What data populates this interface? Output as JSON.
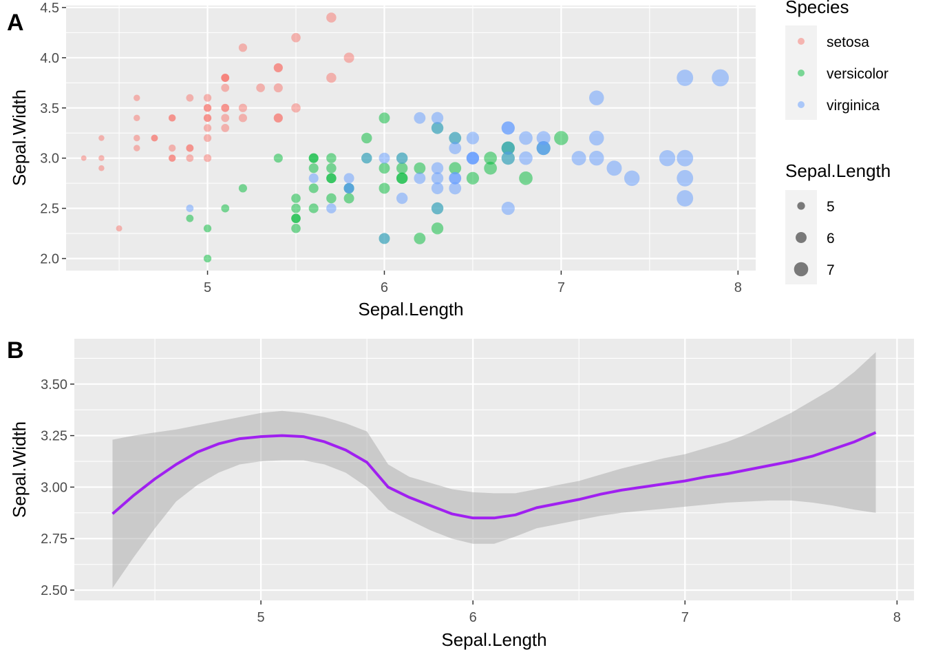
{
  "chart_data": [
    {
      "panel_tag": "A",
      "type": "scatter",
      "xlabel": "Sepal.Length",
      "ylabel": "Sepal.Width",
      "xlim": [
        4.2,
        8.1
      ],
      "ylim": [
        1.88,
        4.52
      ],
      "x_ticks": [
        5,
        6,
        7,
        8
      ],
      "x_tick_labels": [
        "5",
        "6",
        "7",
        "8"
      ],
      "y_ticks": [
        2.0,
        2.5,
        3.0,
        3.5,
        4.0,
        4.5
      ],
      "y_tick_labels": [
        "2.0",
        "2.5",
        "3.0",
        "3.5",
        "4.0",
        "4.5"
      ],
      "grid": true,
      "point_alpha": 0.5,
      "color_legend": {
        "title": "Species",
        "position": "right",
        "entries": [
          {
            "label": "setosa",
            "color": "#F8766D"
          },
          {
            "label": "versicolor",
            "color": "#00BA38"
          },
          {
            "label": "virginica",
            "color": "#619CFF"
          }
        ]
      },
      "size_legend": {
        "title": "Sepal.Length",
        "position": "right",
        "entries": [
          {
            "label": "5",
            "value": 5
          },
          {
            "label": "6",
            "value": 6
          },
          {
            "label": "7",
            "value": 7
          }
        ]
      },
      "series": [
        {
          "name": "setosa",
          "color": "#F8766D",
          "points": [
            [
              5.1,
              3.5
            ],
            [
              4.9,
              3.0
            ],
            [
              4.7,
              3.2
            ],
            [
              4.6,
              3.1
            ],
            [
              5.0,
              3.6
            ],
            [
              5.4,
              3.9
            ],
            [
              4.6,
              3.4
            ],
            [
              5.0,
              3.4
            ],
            [
              4.4,
              2.9
            ],
            [
              4.9,
              3.1
            ],
            [
              5.4,
              3.7
            ],
            [
              4.8,
              3.4
            ],
            [
              4.8,
              3.0
            ],
            [
              4.3,
              3.0
            ],
            [
              5.8,
              4.0
            ],
            [
              5.7,
              4.4
            ],
            [
              5.4,
              3.9
            ],
            [
              5.1,
              3.5
            ],
            [
              5.7,
              3.8
            ],
            [
              5.1,
              3.8
            ],
            [
              5.4,
              3.4
            ],
            [
              5.1,
              3.7
            ],
            [
              4.6,
              3.6
            ],
            [
              5.1,
              3.3
            ],
            [
              4.8,
              3.4
            ],
            [
              5.0,
              3.0
            ],
            [
              5.0,
              3.4
            ],
            [
              5.2,
              3.5
            ],
            [
              5.2,
              3.4
            ],
            [
              4.7,
              3.2
            ],
            [
              4.8,
              3.1
            ],
            [
              5.4,
              3.4
            ],
            [
              5.2,
              4.1
            ],
            [
              5.5,
              4.2
            ],
            [
              4.9,
              3.1
            ],
            [
              5.0,
              3.2
            ],
            [
              5.5,
              3.5
            ],
            [
              4.9,
              3.6
            ],
            [
              4.4,
              3.0
            ],
            [
              5.1,
              3.4
            ],
            [
              5.0,
              3.5
            ],
            [
              4.5,
              2.3
            ],
            [
              4.4,
              3.2
            ],
            [
              5.0,
              3.5
            ],
            [
              5.1,
              3.8
            ],
            [
              4.8,
              3.0
            ],
            [
              5.1,
              3.8
            ],
            [
              4.6,
              3.2
            ],
            [
              5.3,
              3.7
            ],
            [
              5.0,
              3.3
            ]
          ]
        },
        {
          "name": "versicolor",
          "color": "#00BA38",
          "points": [
            [
              7.0,
              3.2
            ],
            [
              6.4,
              3.2
            ],
            [
              6.9,
              3.1
            ],
            [
              5.5,
              2.3
            ],
            [
              6.5,
              2.8
            ],
            [
              5.7,
              2.8
            ],
            [
              6.3,
              3.3
            ],
            [
              4.9,
              2.4
            ],
            [
              6.6,
              2.9
            ],
            [
              5.2,
              2.7
            ],
            [
              5.0,
              2.0
            ],
            [
              5.9,
              3.0
            ],
            [
              6.0,
              2.2
            ],
            [
              6.1,
              2.9
            ],
            [
              5.6,
              2.9
            ],
            [
              6.7,
              3.1
            ],
            [
              5.6,
              3.0
            ],
            [
              5.8,
              2.7
            ],
            [
              6.2,
              2.2
            ],
            [
              5.6,
              2.5
            ],
            [
              5.9,
              3.2
            ],
            [
              6.1,
              2.8
            ],
            [
              6.3,
              2.5
            ],
            [
              6.1,
              2.8
            ],
            [
              6.4,
              2.9
            ],
            [
              6.6,
              3.0
            ],
            [
              6.8,
              2.8
            ],
            [
              6.7,
              3.0
            ],
            [
              6.0,
              2.9
            ],
            [
              5.7,
              2.6
            ],
            [
              5.5,
              2.4
            ],
            [
              5.5,
              2.4
            ],
            [
              5.8,
              2.7
            ],
            [
              6.0,
              2.7
            ],
            [
              5.4,
              3.0
            ],
            [
              6.0,
              3.4
            ],
            [
              6.7,
              3.1
            ],
            [
              6.3,
              2.3
            ],
            [
              5.6,
              3.0
            ],
            [
              5.5,
              2.5
            ],
            [
              5.5,
              2.6
            ],
            [
              6.1,
              3.0
            ],
            [
              5.8,
              2.6
            ],
            [
              5.0,
              2.3
            ],
            [
              5.6,
              2.7
            ],
            [
              5.7,
              3.0
            ],
            [
              5.7,
              2.9
            ],
            [
              6.2,
              2.9
            ],
            [
              5.1,
              2.5
            ],
            [
              5.7,
              2.8
            ]
          ]
        },
        {
          "name": "virginica",
          "color": "#619CFF",
          "points": [
            [
              6.3,
              3.3
            ],
            [
              5.8,
              2.7
            ],
            [
              7.1,
              3.0
            ],
            [
              6.3,
              2.9
            ],
            [
              6.5,
              3.0
            ],
            [
              7.6,
              3.0
            ],
            [
              4.9,
              2.5
            ],
            [
              7.3,
              2.9
            ],
            [
              6.7,
              2.5
            ],
            [
              7.2,
              3.6
            ],
            [
              6.5,
              3.2
            ],
            [
              6.4,
              2.7
            ],
            [
              6.8,
              3.0
            ],
            [
              5.7,
              2.5
            ],
            [
              5.8,
              2.8
            ],
            [
              6.4,
              3.2
            ],
            [
              6.5,
              3.0
            ],
            [
              7.7,
              3.8
            ],
            [
              7.7,
              2.6
            ],
            [
              6.0,
              2.2
            ],
            [
              6.9,
              3.2
            ],
            [
              5.6,
              2.8
            ],
            [
              7.7,
              2.8
            ],
            [
              6.3,
              2.7
            ],
            [
              6.7,
              3.3
            ],
            [
              7.2,
              3.2
            ],
            [
              6.2,
              2.8
            ],
            [
              6.1,
              3.0
            ],
            [
              6.4,
              2.8
            ],
            [
              7.2,
              3.0
            ],
            [
              7.4,
              2.8
            ],
            [
              7.9,
              3.8
            ],
            [
              6.4,
              2.8
            ],
            [
              6.3,
              2.8
            ],
            [
              6.1,
              2.6
            ],
            [
              7.7,
              3.0
            ],
            [
              6.3,
              3.4
            ],
            [
              6.4,
              3.1
            ],
            [
              6.0,
              3.0
            ],
            [
              6.9,
              3.1
            ],
            [
              6.7,
              3.1
            ],
            [
              6.9,
              3.1
            ],
            [
              5.8,
              2.7
            ],
            [
              6.8,
              3.2
            ],
            [
              6.7,
              3.3
            ],
            [
              6.7,
              3.0
            ],
            [
              6.3,
              2.5
            ],
            [
              6.5,
              3.0
            ],
            [
              6.2,
              3.4
            ],
            [
              5.9,
              3.0
            ]
          ]
        }
      ]
    },
    {
      "panel_tag": "B",
      "type": "line",
      "xlabel": "Sepal.Length",
      "ylabel": "Sepal.Width",
      "xlim": [
        4.12,
        8.08
      ],
      "ylim": [
        2.45,
        3.72
      ],
      "x_ticks": [
        5,
        6,
        7,
        8
      ],
      "x_tick_labels": [
        "5",
        "6",
        "7",
        "8"
      ],
      "y_ticks": [
        2.5,
        2.75,
        3.0,
        3.25,
        3.5
      ],
      "y_tick_labels": [
        "2.50",
        "2.75",
        "3.00",
        "3.25",
        "3.50"
      ],
      "grid": true,
      "line_color": "#A020F0",
      "band_color": "#999999",
      "series": [
        {
          "x": [
            4.3,
            4.4,
            4.5,
            4.6,
            4.7,
            4.8,
            4.9,
            5.0,
            5.1,
            5.2,
            5.3,
            5.4,
            5.5,
            5.6,
            5.7,
            5.8,
            5.9,
            6.0,
            6.1,
            6.2,
            6.3,
            6.4,
            6.5,
            6.6,
            6.7,
            6.8,
            6.9,
            7.0,
            7.1,
            7.2,
            7.3,
            7.4,
            7.5,
            7.6,
            7.7,
            7.8,
            7.9
          ],
          "y": [
            2.87,
            2.96,
            3.04,
            3.11,
            3.17,
            3.21,
            3.235,
            3.245,
            3.25,
            3.245,
            3.22,
            3.18,
            3.12,
            3.0,
            2.95,
            2.91,
            2.87,
            2.85,
            2.85,
            2.865,
            2.9,
            2.92,
            2.94,
            2.965,
            2.985,
            3.0,
            3.015,
            3.03,
            3.05,
            3.065,
            3.085,
            3.105,
            3.125,
            3.15,
            3.185,
            3.22,
            3.265
          ],
          "ci_low": [
            2.51,
            2.66,
            2.8,
            2.93,
            3.01,
            3.07,
            3.11,
            3.125,
            3.13,
            3.13,
            3.11,
            3.07,
            3.0,
            2.89,
            2.84,
            2.79,
            2.75,
            2.725,
            2.725,
            2.76,
            2.8,
            2.82,
            2.84,
            2.86,
            2.875,
            2.885,
            2.895,
            2.905,
            2.915,
            2.925,
            2.93,
            2.935,
            2.935,
            2.925,
            2.91,
            2.89,
            2.875
          ],
          "ci_high": [
            3.23,
            3.25,
            3.265,
            3.28,
            3.3,
            3.32,
            3.34,
            3.36,
            3.37,
            3.36,
            3.34,
            3.31,
            3.27,
            3.11,
            3.05,
            3.02,
            2.99,
            2.975,
            2.97,
            2.97,
            2.99,
            3.01,
            3.03,
            3.06,
            3.09,
            3.115,
            3.14,
            3.16,
            3.19,
            3.22,
            3.26,
            3.31,
            3.36,
            3.42,
            3.48,
            3.56,
            3.655
          ]
        }
      ]
    }
  ]
}
